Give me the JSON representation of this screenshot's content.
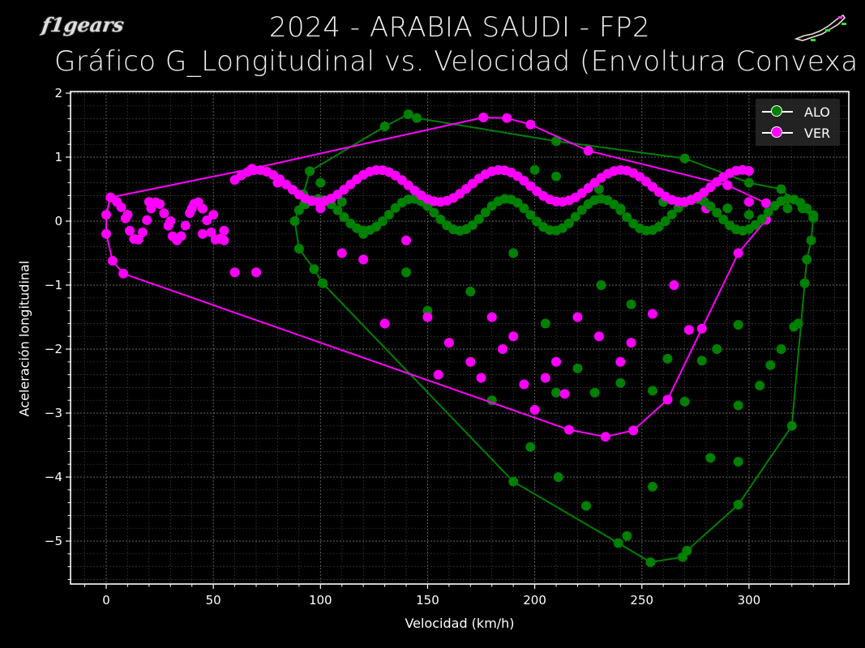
{
  "header": {
    "title_line1": "2024 - ARABIA SAUDI - FP2",
    "title_line2": "Gráfico G_Longitudinal vs. Velocidad (Envoltura Convexa",
    "logo_text": "f1gears",
    "logo_icon": "checkered-flag-icon",
    "track_icon": "jeddah-track-map-icon"
  },
  "colors": {
    "background": "#000000",
    "ALO": "#008000",
    "VER": "#ff00ff",
    "axis": "#ffffff",
    "grid": "#555555"
  },
  "chart_data": {
    "type": "scatter",
    "title": "2024 - ARABIA SAUDI - FP2 — Gráfico G_Longitudinal vs. Velocidad (Envoltura Convexa)",
    "xlabel": "Velocidad (km/h)",
    "ylabel": "Aceleración longitudinal",
    "xlim": [
      -15,
      345
    ],
    "ylim": [
      -5.65,
      2.03
    ],
    "xticks": [
      0,
      50,
      100,
      150,
      200,
      250,
      300
    ],
    "yticks": [
      2,
      1,
      0,
      -1,
      -2,
      -3,
      -4,
      -5
    ],
    "grid": true,
    "minor_grid": true,
    "legend_position": "upper right",
    "legend": [
      "ALO",
      "VER"
    ],
    "series": [
      {
        "name": "ALO",
        "color": "#008000",
        "hull": [
          [
            88,
            0.0
          ],
          [
            92,
            0.42
          ],
          [
            95,
            0.78
          ],
          [
            130,
            1.48
          ],
          [
            141,
            1.67
          ],
          [
            145,
            1.61
          ],
          [
            210,
            1.25
          ],
          [
            270,
            0.98
          ],
          [
            300,
            0.6
          ],
          [
            315,
            0.5
          ],
          [
            325,
            0.2
          ],
          [
            330,
            0.05
          ],
          [
            329,
            -0.3
          ],
          [
            327,
            -0.6
          ],
          [
            326,
            -0.97
          ],
          [
            320,
            -3.2
          ],
          [
            295,
            -4.43
          ],
          [
            271,
            -5.15
          ],
          [
            269,
            -5.25
          ],
          [
            254,
            -5.33
          ],
          [
            239,
            -5.03
          ],
          [
            190,
            -4.07
          ],
          [
            101,
            -0.97
          ],
          [
            97,
            -0.75
          ],
          [
            90,
            -0.43
          ],
          [
            88,
            0.0
          ]
        ],
        "sample_points": [
          [
            100,
            0.6
          ],
          [
            110,
            0.3
          ],
          [
            120,
            -0.2
          ],
          [
            140,
            -0.8
          ],
          [
            150,
            -1.4
          ],
          [
            170,
            -1.1
          ],
          [
            180,
            -2.8
          ],
          [
            190,
            -0.5
          ],
          [
            198,
            -3.53
          ],
          [
            205,
            -1.6
          ],
          [
            210,
            -2.68
          ],
          [
            211,
            -4.0
          ],
          [
            220,
            -2.3
          ],
          [
            224,
            -4.45
          ],
          [
            228,
            -2.68
          ],
          [
            231,
            -1.0
          ],
          [
            240,
            -2.53
          ],
          [
            243,
            -4.92
          ],
          [
            245,
            -1.3
          ],
          [
            255,
            -2.65
          ],
          [
            255,
            -4.15
          ],
          [
            262,
            -2.15
          ],
          [
            270,
            -2.82
          ],
          [
            278,
            -2.18
          ],
          [
            282,
            -3.7
          ],
          [
            285,
            -2.0
          ],
          [
            295,
            -1.62
          ],
          [
            295,
            -2.88
          ],
          [
            295,
            -3.76
          ],
          [
            305,
            -2.57
          ],
          [
            310,
            -2.25
          ],
          [
            315,
            -2.0
          ],
          [
            321,
            -1.65
          ],
          [
            323,
            -1.6
          ],
          [
            318,
            0.2
          ],
          [
            300,
            0.1
          ],
          [
            290,
            0.2
          ],
          [
            260,
            0.3
          ],
          [
            240,
            0.2
          ],
          [
            230,
            0.5
          ],
          [
            210,
            0.7
          ],
          [
            200,
            0.8
          ]
        ]
      },
      {
        "name": "VER",
        "color": "#ff00ff",
        "hull": [
          [
            2,
            0.37
          ],
          [
            68,
            0.82
          ],
          [
            176,
            1.62
          ],
          [
            187,
            1.61
          ],
          [
            198,
            1.51
          ],
          [
            225,
            1.1
          ],
          [
            290,
            0.56
          ],
          [
            308,
            0.28
          ],
          [
            308,
            0.02
          ],
          [
            295,
            -0.5
          ],
          [
            278,
            -1.68
          ],
          [
            262,
            -2.79
          ],
          [
            246,
            -3.27
          ],
          [
            233,
            -3.37
          ],
          [
            216,
            -3.26
          ],
          [
            8,
            -0.82
          ],
          [
            3,
            -0.62
          ],
          [
            0,
            -0.2
          ],
          [
            0,
            0.1
          ],
          [
            2,
            0.37
          ]
        ],
        "sample_points": [
          [
            10,
            0.1
          ],
          [
            20,
            0.3
          ],
          [
            30,
            0.0
          ],
          [
            40,
            0.2
          ],
          [
            45,
            -0.2
          ],
          [
            50,
            0.1
          ],
          [
            55,
            -0.3
          ],
          [
            60,
            -0.8
          ],
          [
            70,
            -0.8
          ],
          [
            80,
            0.6
          ],
          [
            100,
            0.2
          ],
          [
            110,
            -0.5
          ],
          [
            120,
            -0.6
          ],
          [
            130,
            -1.6
          ],
          [
            140,
            -0.3
          ],
          [
            150,
            -1.5
          ],
          [
            155,
            -2.4
          ],
          [
            160,
            -1.9
          ],
          [
            170,
            -2.2
          ],
          [
            175,
            -2.45
          ],
          [
            180,
            -1.5
          ],
          [
            185,
            -2.0
          ],
          [
            190,
            -1.8
          ],
          [
            195,
            -2.55
          ],
          [
            200,
            -2.95
          ],
          [
            205,
            -2.45
          ],
          [
            210,
            -2.2
          ],
          [
            214,
            -2.7
          ],
          [
            220,
            -1.5
          ],
          [
            230,
            -1.8
          ],
          [
            240,
            -2.2
          ],
          [
            245,
            -1.9
          ],
          [
            255,
            -1.45
          ],
          [
            265,
            -1.0
          ],
          [
            272,
            -1.7
          ],
          [
            280,
            0.2
          ],
          [
            300,
            0.3
          ]
        ]
      }
    ]
  },
  "axes": {
    "xlabel": "Velocidad (km/h)",
    "ylabel": "Aceleración longitudinal",
    "xtick_labels": [
      "0",
      "50",
      "100",
      "150",
      "200",
      "250",
      "300"
    ],
    "ytick_labels": [
      "2",
      "1",
      "0",
      "−1",
      "−2",
      "−3",
      "−4",
      "−5"
    ]
  },
  "legend": {
    "items": [
      {
        "label": "ALO",
        "color": "#008000"
      },
      {
        "label": "VER",
        "color": "#ff00ff"
      }
    ]
  }
}
